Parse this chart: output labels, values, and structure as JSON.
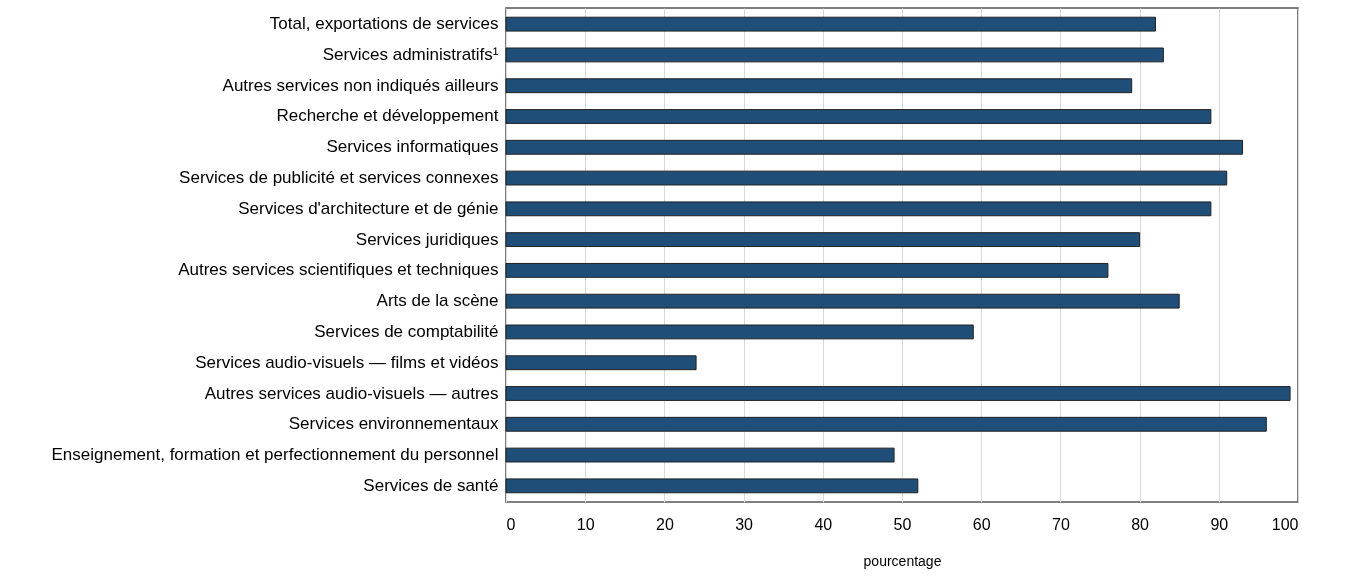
{
  "chart_data": {
    "type": "bar",
    "orientation": "horizontal",
    "xlabel": "pourcentage",
    "categories": [
      "Total, exportations de services",
      "Services administratifs¹",
      "Autres services non indiqués ailleurs",
      "Recherche et développement",
      "Services informatiques",
      "Services de publicité et services connexes",
      "Services d'architecture et de génie",
      "Services juridiques",
      "Autres services scientifiques et techniques",
      "Arts de la scène",
      "Services de comptabilité",
      "Services audio-visuels — films et vidéos",
      "Autres services audio-visuels — autres",
      "Services environnementaux",
      "Enseignement, formation et perfectionnement du personnel",
      "Services de santé"
    ],
    "values": [
      82,
      83,
      79,
      89,
      93,
      91,
      89,
      80,
      76,
      85,
      59,
      24,
      99,
      96,
      49,
      52
    ],
    "color": "#1f4e79",
    "xlim": [
      0,
      100
    ],
    "xticks": [
      0,
      10,
      20,
      30,
      40,
      50,
      60,
      70,
      80,
      90,
      100
    ],
    "grid": "x"
  }
}
